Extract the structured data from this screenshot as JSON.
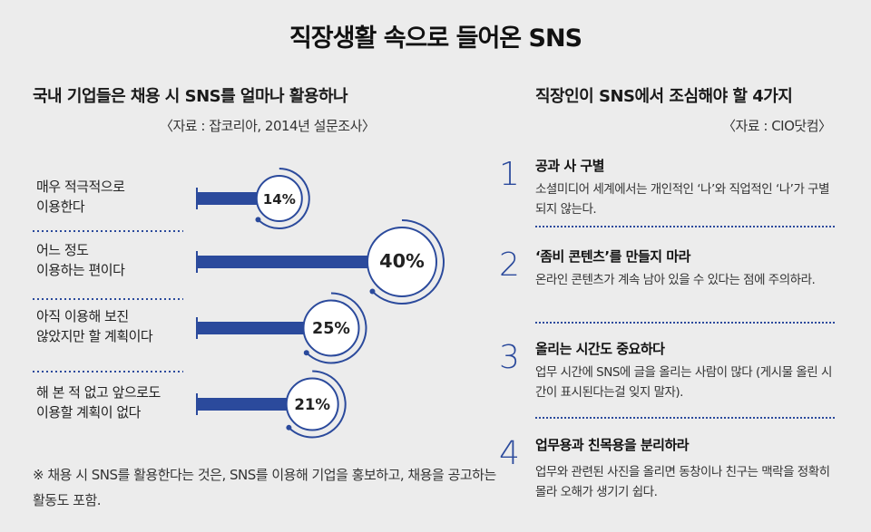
{
  "title": "직장생활 속으로 들어온 SNS",
  "left": {
    "heading": "국내 기업들은 채용 시 SNS를 얼마나 활용하나",
    "source": "〈자료 : 잡코리아, 2014년 설문조사〉",
    "note": "※ 채용 시 SNS를 활용한다는 것은, SNS를 이용해 기업을 홍보하고, 채용을 공고하는 활동도 포함."
  },
  "chart_data": {
    "type": "bar",
    "categories": [
      "매우 적극적으로 이용한다",
      "어느 정도 이용하는 편이다",
      "아직 이용해 보진 않았지만 할 계획이다",
      "해 본 적 없고 앞으로도 이용할 계획이 없다"
    ],
    "category_lines": [
      [
        "매우 적극적으로",
        "이용한다"
      ],
      [
        "어느 정도",
        "이용하는 편이다"
      ],
      [
        "아직 이용해 보진",
        "않았지만 할 계획이다"
      ],
      [
        "해 본 적 없고 앞으로도",
        "이용할 계획이 없다"
      ]
    ],
    "values": [
      14,
      40,
      25,
      21
    ],
    "value_labels": [
      "14%",
      "40%",
      "25%",
      "21%"
    ],
    "unit": "%",
    "xlim": [
      0,
      40
    ],
    "orientation": "horizontal",
    "bar_color": "#2b4a9c"
  },
  "right": {
    "heading": "직장인이 SNS에서 조심해야 할 4가지",
    "source": "〈자료 : CIO닷컴〉",
    "tips": [
      {
        "num": "1",
        "title": "공과 사 구별",
        "body": "소셜미디어 세계에서는 개인적인 ‘나’와 직업적인 ‘나’가 구별되지 않는다."
      },
      {
        "num": "2",
        "title": "‘좀비 콘텐츠’를 만들지 마라",
        "body": "온라인 콘텐츠가 계속 남아 있을 수 있다는 점에 주의하라."
      },
      {
        "num": "3",
        "title": "올리는 시간도 중요하다",
        "body": "업무 시간에 SNS에 글을 올리는 사람이 많다 (게시물 올린 시간이 표시된다는걸 잊지 말자)."
      },
      {
        "num": "4",
        "title": "업무용과 친목용을 분리하라",
        "body": "업무와 관련된 사진을 올리면 동창이나 친구는 맥락을 정확히 몰라 오해가 생기기 쉽다."
      }
    ]
  }
}
